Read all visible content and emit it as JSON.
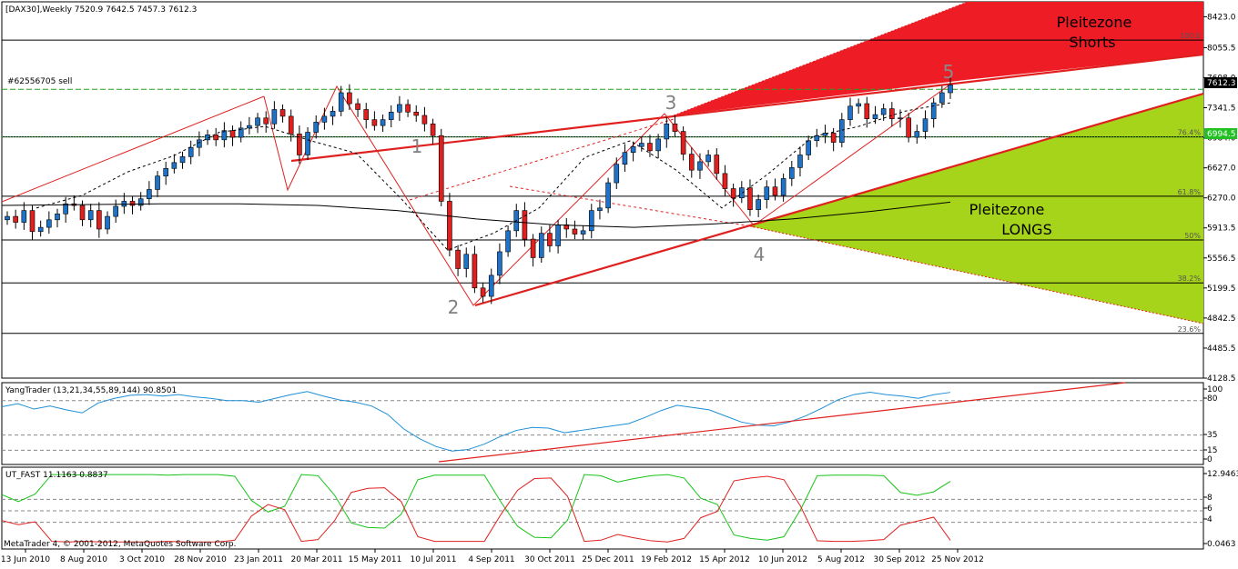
{
  "header": {
    "symbol_line": "[DAX30],Weekly  7520.9 7642.5 7457.3 7612.3",
    "order_line": "#62556705 sell",
    "copyright": "MetaTrader 4, © 2001-2012, MetaQuotes Software Corp."
  },
  "colors": {
    "bull": "#1e73c8",
    "bear": "#e0201f",
    "zone_short": "#ee1c25",
    "zone_long": "#a6d41a",
    "trend": "#e0201f",
    "ma_long": "#000000",
    "grid": "#000000"
  },
  "annotations": {
    "zone_short_title": "Pleitezone",
    "zone_short_sub": "Shorts",
    "zone_long_title": "Pleitezone",
    "zone_long_sub": "LONGS",
    "wave1": "1",
    "wave2": "2",
    "wave3": "3",
    "wave4": "4",
    "wave5": "5"
  },
  "price_tag": {
    "label": "7612.3",
    "bg": "#000000",
    "fg": "#ffffff"
  },
  "fib_tag": {
    "label": "6994.5",
    "bg": "#22c022",
    "fg": "#ffffff"
  },
  "chart_data": [
    {
      "type": "candlestick",
      "title": "[DAX30],Weekly",
      "ylim": [
        4128.5,
        8600
      ],
      "y_ticks": [
        "8423.0",
        "8055.5",
        "7698.0",
        "7341.5",
        "6984.0",
        "6627.0",
        "6270.0",
        "5913.5",
        "5556.5",
        "5199.5",
        "4842.5",
        "4485.5",
        "4128.5"
      ],
      "fib_levels": [
        {
          "label": "100.0",
          "value": 8145
        },
        {
          "label": "76.4%",
          "value": 6994.5
        },
        {
          "label": "61.8%",
          "value": 6290
        },
        {
          "label": "50%",
          "value": 5770
        },
        {
          "label": "38.2%",
          "value": 5260
        },
        {
          "label": "23.6%",
          "value": 4660
        }
      ],
      "order_level": 7560,
      "x_labels": [
        "13 Jun 2010",
        "8 Aug 2010",
        "3 Oct 2010",
        "28 Nov 2010",
        "23 Jan 2011",
        "20 Mar 2011",
        "15 May 2011",
        "10 Jul 2011",
        "4 Sep 2011",
        "30 Oct 2011",
        "25 Dec 2011",
        "19 Feb 2012",
        "15 Apr 2012",
        "10 Jun 2012",
        "5 Aug 2012",
        "30 Sep 2012",
        "25 Nov 2012"
      ],
      "closes": [
        6050,
        5980,
        6120,
        5870,
        5920,
        6010,
        6080,
        6200,
        6180,
        6010,
        6120,
        5900,
        6050,
        6170,
        6230,
        6180,
        6260,
        6370,
        6530,
        6620,
        6690,
        6760,
        6870,
        6960,
        7020,
        6960,
        7070,
        6990,
        7100,
        7130,
        7220,
        7150,
        7320,
        7240,
        7030,
        6780,
        7050,
        7170,
        7240,
        7300,
        7520,
        7390,
        7320,
        7200,
        7130,
        7200,
        7290,
        7380,
        7290,
        7250,
        7150,
        7010,
        6230,
        5650,
        5430,
        5600,
        5200,
        5100,
        5350,
        5630,
        5880,
        6120,
        5780,
        5560,
        5850,
        5700,
        5950,
        5900,
        5840,
        5880,
        6120,
        6150,
        6450,
        6670,
        6810,
        6880,
        6920,
        6830,
        6970,
        7150,
        7060,
        6790,
        6600,
        6700,
        6780,
        6560,
        6380,
        6270,
        6390,
        6130,
        6250,
        6400,
        6300,
        6500,
        6630,
        6780,
        6950,
        7010,
        7040,
        6930,
        7200,
        7360,
        7390,
        7210,
        7260,
        7330,
        7210,
        7220,
        6990,
        7060,
        7210,
        7400,
        7520,
        7612.3
      ],
      "ma_long": [
        6180,
        6190,
        6200,
        6200,
        6180,
        6120,
        6020,
        5950,
        5920,
        5960,
        6020,
        6110,
        6220
      ],
      "ma_dash": [
        6150,
        6300,
        6580,
        6770,
        7050,
        7120,
        6950,
        6800,
        6250,
        5650,
        5850,
        6150,
        6750,
        6950,
        6600,
        6150,
        6550,
        7000,
        7120,
        7300,
        7400
      ],
      "waves": [
        {
          "label": "1",
          "value": 7600
        },
        {
          "label": "2",
          "value": 4950
        },
        {
          "label": "3",
          "value": 7190
        },
        {
          "label": "4",
          "value": 5900
        },
        {
          "label": "5",
          "value": 7640
        }
      ]
    },
    {
      "type": "line",
      "title": "YangTrader (13,21,34,55,89,144) 90.8501",
      "ylim": [
        0,
        100
      ],
      "y_ticks": [
        "100",
        "80",
        "35",
        "15",
        "0"
      ],
      "levels": [
        80,
        35,
        15
      ],
      "series": [
        {
          "color": "#1e8fd6",
          "values": [
            72,
            76,
            69,
            73,
            68,
            64,
            77,
            83,
            87,
            88,
            86,
            88,
            85,
            83,
            80,
            80,
            78,
            83,
            88,
            92,
            86,
            81,
            78,
            73,
            62,
            43,
            30,
            20,
            14,
            16,
            23,
            33,
            41,
            45,
            44,
            38,
            41,
            44,
            47,
            50,
            58,
            67,
            74,
            71,
            68,
            60,
            52,
            48,
            47,
            52,
            60,
            70,
            81,
            88,
            91,
            88,
            86,
            83,
            88,
            90.85
          ]
        }
      ]
    },
    {
      "type": "line",
      "title": "UT_FAST 11.1163 0.8837",
      "ylim": [
        0,
        12.9463
      ],
      "y_ticks": [
        "12.9463",
        "8",
        "6",
        "4",
        "0.0463"
      ],
      "levels": [
        8,
        6,
        4
      ],
      "series": [
        {
          "color": "#17c417",
          "values": [
            8.8,
            7.6,
            8.9,
            12.3,
            12.3,
            12.2,
            12.3,
            12.3,
            12.3,
            12.3,
            12.2,
            12.3,
            12.3,
            12.3,
            12.0,
            7.8,
            5.8,
            6.8,
            12.3,
            12.1,
            8.7,
            3.9,
            3.1,
            3.0,
            5.4,
            11.4,
            12.2,
            12.2,
            12.2,
            12.2,
            7.5,
            3.3,
            1.4,
            1.3,
            4.4,
            12.3,
            12.1,
            11.0,
            11.6,
            12.1,
            12.3,
            11.7,
            8.2,
            7.1,
            1.8,
            1.2,
            0.9,
            1.5,
            6.2,
            12.1,
            12.2,
            12.2,
            12.2,
            12.1,
            9.2,
            8.7,
            9.3,
            11.1163
          ]
        },
        {
          "color": "#e0201f",
          "values": [
            4.3,
            3.6,
            4.1,
            0.7,
            0.6,
            0.7,
            0.6,
            0.6,
            0.6,
            0.6,
            0.7,
            0.6,
            0.6,
            0.6,
            0.9,
            5.1,
            7.1,
            6.2,
            0.7,
            1.0,
            4.3,
            9.2,
            9.9,
            10.0,
            7.6,
            1.5,
            0.7,
            0.7,
            0.7,
            0.7,
            5.4,
            9.6,
            11.6,
            11.7,
            8.5,
            0.7,
            0.9,
            1.9,
            1.3,
            0.8,
            0.6,
            1.2,
            4.8,
            5.9,
            11.2,
            11.7,
            12.0,
            11.4,
            6.8,
            0.8,
            0.7,
            0.7,
            0.8,
            1.0,
            3.5,
            4.2,
            4.9,
            0.8837
          ]
        }
      ]
    }
  ]
}
